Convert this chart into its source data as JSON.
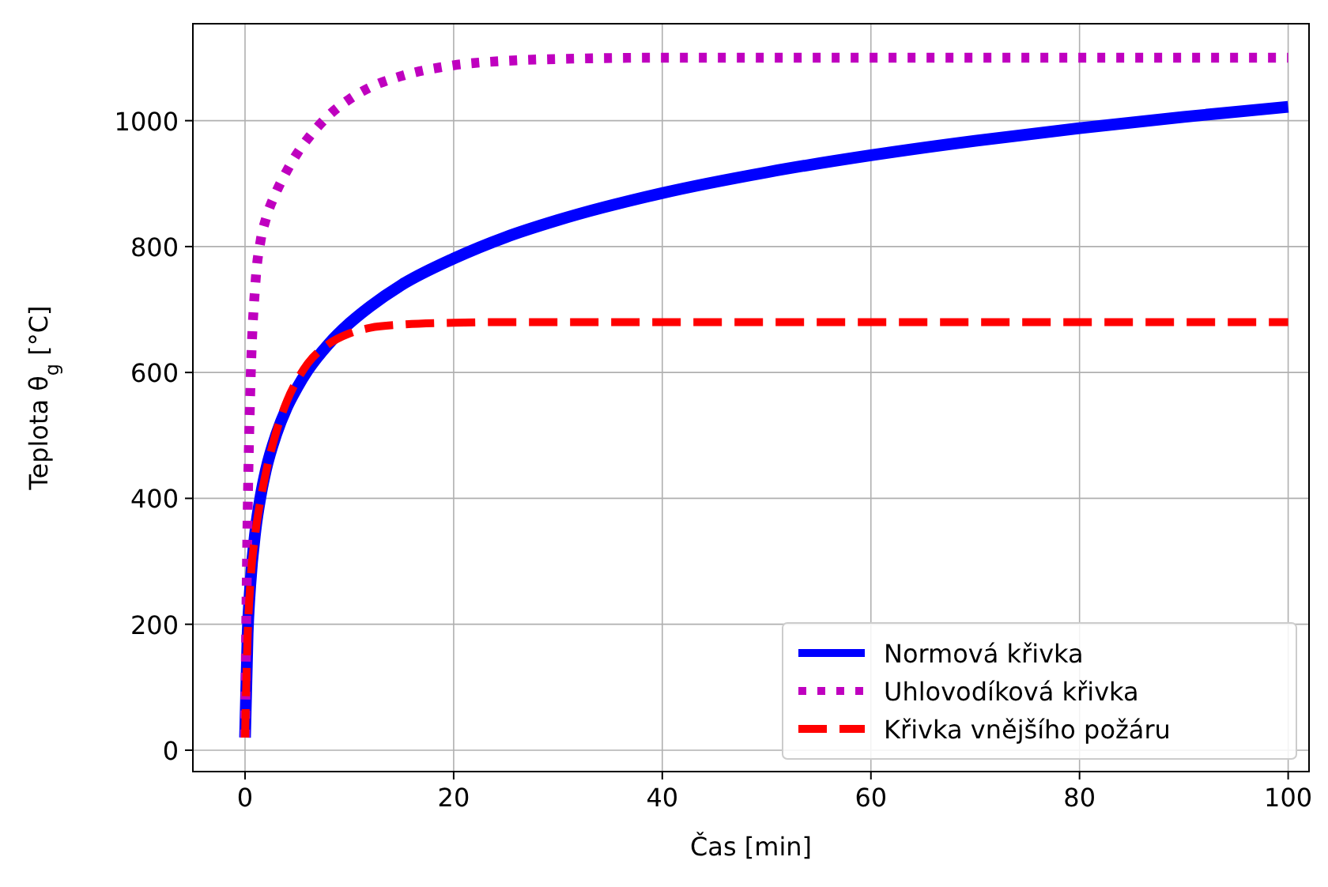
{
  "chart_data": {
    "type": "line",
    "xlabel": "Čas [min]",
    "ylabel": "Teplota θ$_{g}$ [°C]",
    "xlim": [
      -5,
      102
    ],
    "ylim": [
      -34,
      1154
    ],
    "xticks": [
      0,
      20,
      40,
      60,
      80,
      100
    ],
    "yticks": [
      0,
      200,
      400,
      600,
      800,
      1000
    ],
    "grid": true,
    "legend": "bottom right",
    "x": [
      0,
      0.25,
      0.5,
      1,
      1.5,
      2,
      3,
      4,
      5,
      6,
      8,
      10,
      12,
      15,
      20,
      25,
      30,
      40,
      50,
      60,
      70,
      80,
      90,
      100
    ],
    "series": [
      {
        "name": "Normová křivka",
        "color": "#0000ff",
        "line_style": "solid",
        "values": [
          20,
          185,
          261,
          349,
          404,
          445,
          502,
          544,
          576,
          603,
          645,
          678,
          705,
          739,
          781,
          815,
          842,
          885,
          918,
          945,
          968,
          988,
          1006,
          1022
        ]
      },
      {
        "name": "Uhlovodíková křivka",
        "color": "#bf00bf",
        "line_style": "dotted",
        "values": [
          20,
          373,
          568,
          743,
          810,
          844,
          887,
          920,
          948,
          971,
          1008,
          1034,
          1053,
          1071,
          1088,
          1095,
          1098,
          1100,
          1100,
          1100,
          1100,
          1100,
          1100,
          1100
        ]
      },
      {
        "name": "Křivka vnějšího požáru",
        "color": "#ff0000",
        "line_style": "dashed",
        "values": [
          20,
          182,
          263,
          346,
          399,
          441,
          506,
          554,
          588,
          614,
          645,
          662,
          671,
          676,
          679,
          680,
          680,
          680,
          680,
          680,
          680,
          680,
          680,
          680
        ]
      }
    ]
  }
}
